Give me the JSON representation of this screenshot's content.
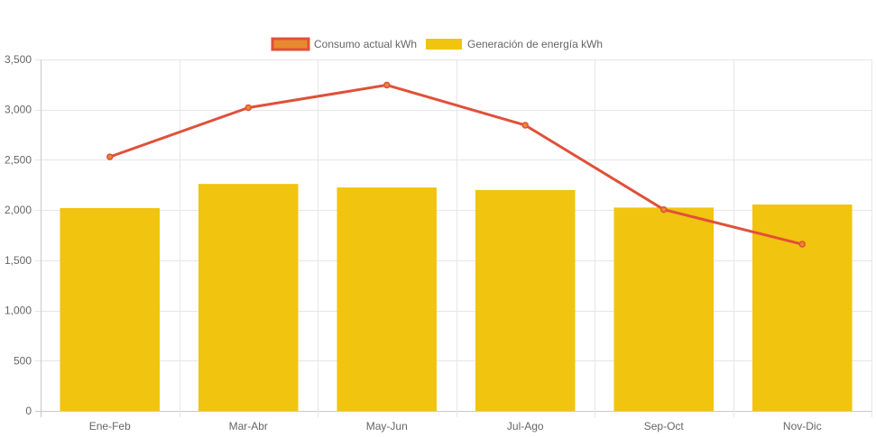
{
  "chart_data": {
    "type": "bar",
    "categories": [
      "Ene-Feb",
      "Mar-Abr",
      "May-Jun",
      "Jul-Ago",
      "Sep-Oct",
      "Nov-Dic"
    ],
    "series": [
      {
        "name": "Consumo actual kWh",
        "kind": "line",
        "color": "#e0503a",
        "fill": "#e88a2e",
        "values": [
          2530,
          3020,
          3245,
          2845,
          2005,
          1660
        ]
      },
      {
        "name": "Generación de energía kWh",
        "kind": "bar",
        "color": "#f1c40f",
        "values": [
          2020,
          2260,
          2225,
          2200,
          2025,
          2055
        ]
      }
    ],
    "yticks": [
      "0",
      "500",
      "1,000",
      "1,500",
      "2,000",
      "2,500",
      "3,000",
      "3,500"
    ],
    "ylim": [
      0,
      3500
    ],
    "grid": true,
    "legend": "top-center"
  }
}
